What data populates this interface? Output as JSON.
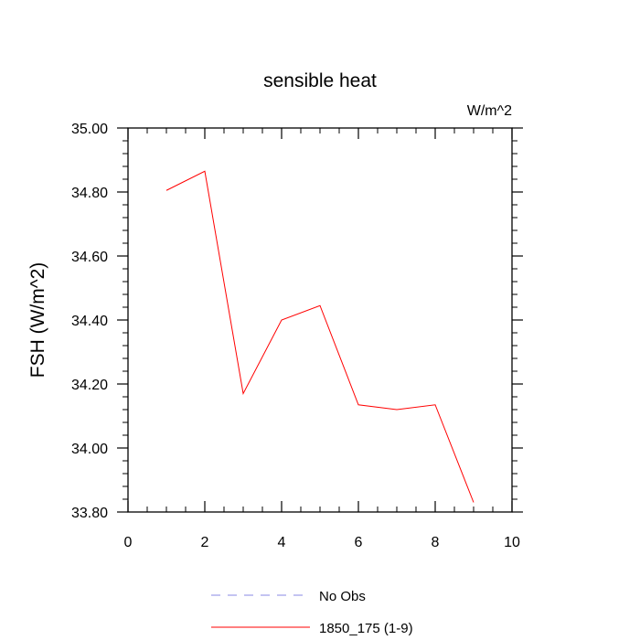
{
  "chart_data": {
    "type": "line",
    "title": "sensible heat",
    "units_label": "W/m^2",
    "ylabel": "FSH  (W/m^2)",
    "xlabel": "",
    "xlim": [
      0,
      10
    ],
    "ylim": [
      33.8,
      35.0
    ],
    "x_ticks": [
      0,
      2,
      4,
      6,
      8,
      10
    ],
    "x_tick_labels": [
      "0",
      "2",
      "4",
      "6",
      "8",
      "10"
    ],
    "y_ticks": [
      33.8,
      34.0,
      34.2,
      34.4,
      34.6,
      34.8,
      35.0
    ],
    "y_tick_labels": [
      "33.80",
      "34.00",
      "34.20",
      "34.40",
      "34.60",
      "34.80",
      "35.00"
    ],
    "grid": false,
    "legend_position": "bottom",
    "series": [
      {
        "name": "No Obs",
        "color": "#8a8ae6",
        "dashed": true,
        "x": [],
        "y": []
      },
      {
        "name": "1850_175 (1-9)",
        "color": "#ff0000",
        "dashed": false,
        "x": [
          1,
          2,
          3,
          4,
          5,
          6,
          7,
          8,
          9
        ],
        "y": [
          34.805,
          34.865,
          34.17,
          34.4,
          34.445,
          34.135,
          34.12,
          34.135,
          33.83
        ]
      }
    ]
  }
}
